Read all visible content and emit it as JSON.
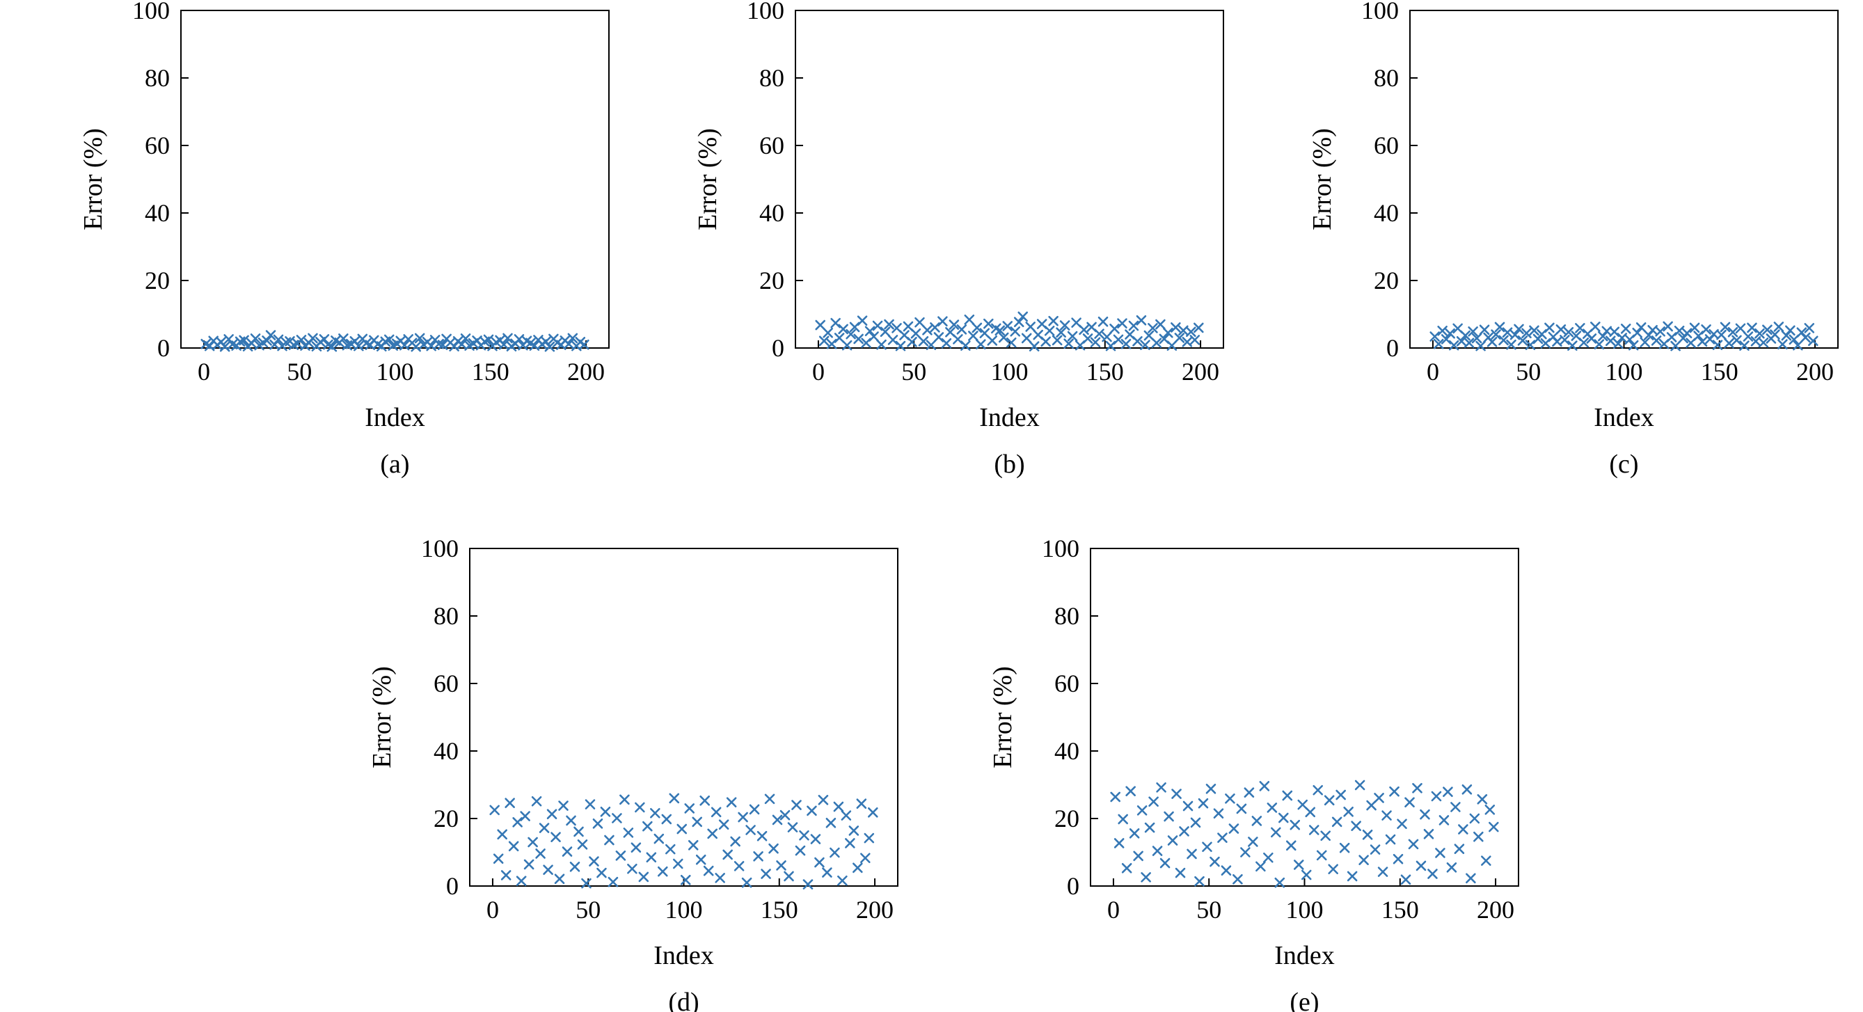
{
  "page": {
    "background": "#ffffff",
    "marker_color": "#3577b4",
    "axis_color": "#000000"
  },
  "chart_data": [
    {
      "id": "a",
      "type": "scatter",
      "caption": "(a)",
      "xlabel": "Index",
      "ylabel": "Error (%)",
      "xlim": [
        -12,
        212
      ],
      "ylim": [
        0,
        100
      ],
      "xticks": [
        0,
        50,
        100,
        150,
        200
      ],
      "yticks": [
        0,
        20,
        40,
        60,
        80,
        100
      ],
      "marker": "x",
      "x_start": 1,
      "x_step": 2,
      "y_values": [
        1.2,
        0.6,
        2.1,
        0.9,
        1.8,
        0.4,
        2.6,
        1.1,
        0.7,
        1.9,
        2.3,
        0.5,
        1.4,
        2.8,
        0.8,
        1.6,
        2.2,
        3.8,
        1.0,
        2.5,
        0.6,
        1.7,
        2.0,
        0.9,
        1.3,
        2.4,
        0.7,
        1.5,
        2.9,
        0.5,
        1.8,
        2.6,
        1.0,
        0.4,
        2.2,
        1.6,
        2.8,
        0.8,
        1.2,
        2.0,
        0.6,
        2.7,
        1.4,
        0.9,
        2.3,
        1.1,
        0.5,
        1.9,
        2.5,
        0.7,
        1.3,
        2.1,
        0.8,
        2.6,
        1.5,
        0.4,
        2.9,
        1.0,
        1.8,
        0.6,
        2.4,
        1.2,
        0.9,
        2.7,
        1.6,
        0.5,
        2.0,
        1.1,
        2.8,
        0.7,
        1.4,
        2.2,
        0.8,
        1.9,
        2.5,
        0.6,
        1.7,
        2.3,
        1.0,
        2.9,
        0.5,
        1.3,
        2.6,
        0.8,
        2.1,
        1.5,
        0.7,
        2.4,
        1.1,
        1.9,
        0.4,
        2.7,
        1.6,
        0.9,
        2.2,
        1.2,
        2.9,
        0.6,
        1.8,
        1.0
      ]
    },
    {
      "id": "b",
      "type": "scatter",
      "caption": "(b)",
      "xlabel": "Index",
      "ylabel": "Error (%)",
      "xlim": [
        -12,
        212
      ],
      "ylim": [
        0,
        100
      ],
      "xticks": [
        0,
        50,
        100,
        150,
        200
      ],
      "yticks": [
        0,
        20,
        40,
        60,
        80,
        100
      ],
      "marker": "x",
      "x_start": 1,
      "x_step": 2,
      "y_values": [
        6.8,
        2.1,
        4.5,
        1.2,
        7.4,
        3.0,
        5.6,
        0.8,
        4.1,
        6.2,
        2.7,
        8.1,
        1.5,
        5.0,
        3.4,
        6.6,
        1.0,
        4.8,
        7.0,
        2.4,
        5.9,
        0.6,
        3.8,
        6.4,
        1.8,
        4.3,
        7.6,
        2.0,
        5.3,
        0.9,
        6.1,
        3.2,
        7.9,
        1.4,
        4.7,
        6.9,
        2.6,
        5.5,
        0.7,
        8.4,
        3.6,
        6.0,
        1.1,
        4.4,
        7.2,
        2.2,
        5.8,
        5.2,
        3.1,
        6.5,
        1.6,
        4.9,
        7.7,
        9.3,
        2.9,
        6.3,
        0.5,
        3.9,
        7.1,
        1.9,
        5.1,
        8.0,
        2.3,
        4.6,
        6.7,
        1.3,
        3.5,
        7.5,
        0.8,
        5.4,
        2.8,
        6.2,
        1.7,
        4.2,
        7.8,
        3.3,
        0.6,
        5.7,
        2.5,
        7.3,
        1.2,
        4.0,
        6.6,
        2.0,
        8.2,
        0.9,
        3.7,
        5.9,
        1.5,
        7.0,
        2.7,
        4.5,
        0.7,
        6.1,
        3.0,
        5.2,
        1.8,
        4.8,
        2.4,
        6.0
      ]
    },
    {
      "id": "c",
      "type": "scatter",
      "caption": "(c)",
      "xlabel": "Index",
      "ylabel": "Error (%)",
      "xlim": [
        -12,
        212
      ],
      "ylim": [
        0,
        100
      ],
      "xticks": [
        0,
        50,
        100,
        150,
        200
      ],
      "yticks": [
        0,
        20,
        40,
        60,
        80,
        100
      ],
      "marker": "x",
      "x_start": 1,
      "x_step": 2,
      "y_values": [
        3.4,
        1.2,
        5.1,
        2.6,
        4.3,
        0.8,
        5.8,
        2.0,
        3.7,
        1.5,
        4.9,
        2.9,
        0.6,
        5.4,
        3.1,
        1.8,
        4.0,
        6.2,
        2.3,
        4.6,
        1.0,
        3.9,
        5.6,
        2.2,
        4.4,
        0.9,
        5.2,
        2.7,
        4.1,
        1.4,
        6.0,
        3.3,
        1.9,
        5.5,
        2.4,
        4.7,
        0.7,
        3.6,
        5.9,
        1.6,
        4.2,
        2.8,
        6.3,
        1.1,
        3.5,
        5.0,
        2.1,
        4.8,
        1.3,
        3.0,
        5.7,
        2.5,
        0.8,
        4.5,
        6.1,
        1.7,
        3.8,
        5.3,
        2.2,
        4.9,
        1.2,
        6.4,
        3.2,
        0.6,
        5.1,
        2.9,
        4.4,
        1.5,
        6.0,
        3.6,
        1.9,
        5.5,
        2.6,
        4.1,
        0.9,
        3.9,
        6.2,
        1.4,
        4.7,
        2.3,
        5.8,
        0.7,
        3.4,
        6.0,
        2.0,
        4.3,
        1.6,
        5.4,
        2.8,
        4.0,
        6.3,
        1.1,
        3.7,
        5.2,
        2.5,
        0.8,
        4.6,
        3.1,
        5.9,
        2.1
      ]
    },
    {
      "id": "d",
      "type": "scatter",
      "caption": "(d)",
      "xlabel": "Index",
      "ylabel": "Error (%)",
      "xlim": [
        -12,
        212
      ],
      "ylim": [
        0,
        100
      ],
      "xticks": [
        0,
        50,
        100,
        150,
        200
      ],
      "yticks": [
        0,
        20,
        40,
        60,
        80,
        100
      ],
      "marker": "x",
      "x_start": 1,
      "x_step": 2,
      "y_values": [
        22.5,
        8.1,
        15.3,
        3.2,
        24.6,
        11.8,
        18.9,
        1.5,
        20.7,
        6.4,
        13.0,
        25.1,
        9.6,
        17.2,
        4.8,
        21.3,
        14.5,
        2.1,
        23.8,
        10.2,
        19.4,
        5.7,
        16.1,
        12.3,
        0.8,
        24.2,
        7.3,
        18.5,
        3.9,
        22.0,
        13.6,
        1.2,
        20.1,
        9.0,
        25.6,
        15.8,
        5.1,
        11.4,
        23.3,
        2.7,
        17.7,
        8.5,
        21.6,
        14.0,
        4.3,
        19.8,
        10.9,
        26.0,
        6.6,
        16.9,
        1.8,
        23.0,
        12.1,
        19.0,
        7.8,
        25.3,
        4.5,
        15.5,
        21.9,
        2.4,
        18.2,
        9.3,
        24.8,
        13.2,
        5.9,
        20.4,
        1.0,
        16.6,
        22.7,
        8.8,
        14.8,
        3.6,
        25.8,
        11.1,
        19.6,
        6.1,
        21.0,
        2.9,
        17.4,
        24.0,
        10.5,
        15.0,
        0.5,
        22.3,
        13.9,
        7.0,
        25.5,
        4.0,
        18.7,
        9.9,
        23.5,
        1.6,
        20.9,
        12.7,
        16.4,
        5.4,
        24.4,
        8.3,
        14.2,
        21.8
      ]
    },
    {
      "id": "e",
      "type": "scatter",
      "caption": "(e)",
      "xlabel": "Index",
      "ylabel": "Error (%)",
      "xlim": [
        -12,
        212
      ],
      "ylim": [
        0,
        100
      ],
      "xticks": [
        0,
        50,
        100,
        150,
        200
      ],
      "yticks": [
        0,
        20,
        40,
        60,
        80,
        100
      ],
      "marker": "x",
      "x_start": 1,
      "x_step": 2,
      "y_values": [
        26.4,
        12.7,
        19.8,
        5.3,
        28.1,
        15.6,
        8.9,
        22.4,
        2.6,
        17.3,
        25.0,
        10.4,
        29.2,
        6.8,
        20.6,
        13.5,
        27.3,
        3.9,
        16.2,
        23.7,
        9.5,
        18.8,
        1.4,
        24.5,
        11.6,
        28.8,
        7.2,
        21.5,
        14.3,
        4.6,
        25.9,
        17.0,
        2.0,
        22.9,
        10.0,
        27.7,
        13.1,
        19.3,
        5.8,
        29.6,
        8.4,
        23.2,
        15.9,
        1.0,
        20.2,
        26.8,
        12.0,
        18.1,
        6.3,
        24.1,
        3.3,
        21.9,
        16.6,
        28.4,
        9.1,
        14.9,
        25.4,
        5.0,
        19.0,
        27.0,
        11.3,
        22.0,
        2.9,
        17.8,
        29.9,
        7.7,
        15.2,
        23.9,
        10.8,
        26.1,
        4.2,
        20.9,
        13.8,
        28.0,
        8.0,
        18.4,
        1.9,
        24.8,
        12.4,
        29.0,
        6.0,
        21.2,
        15.4,
        3.6,
        26.6,
        9.8,
        19.5,
        27.9,
        5.5,
        23.4,
        11.0,
        16.8,
        28.6,
        2.3,
        20.0,
        14.6,
        25.7,
        7.5,
        22.6,
        17.5
      ]
    }
  ]
}
